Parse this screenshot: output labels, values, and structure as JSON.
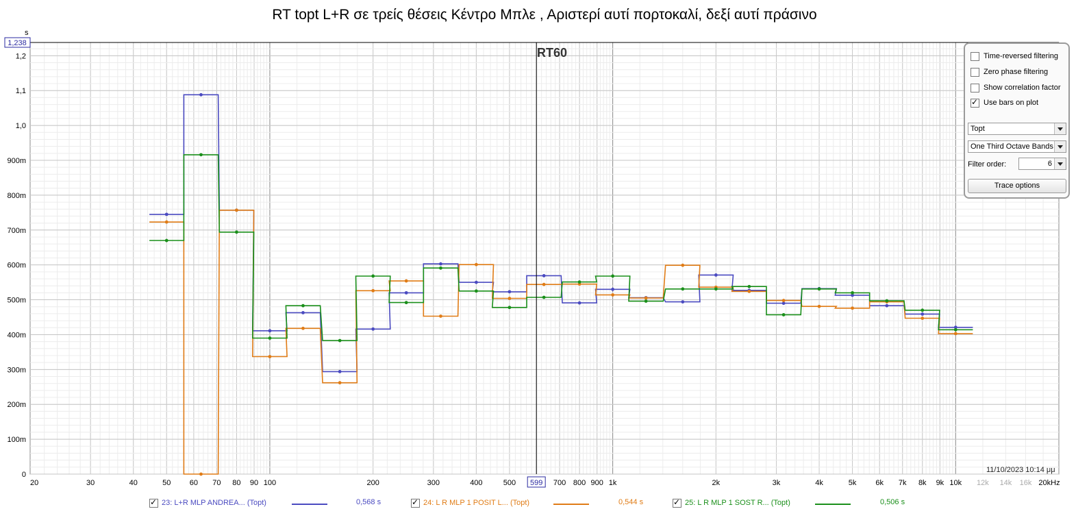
{
  "title": "RT topt L+R σε τρείς θέσεις Κέντρο Μπλε , Αριστερί αυτί πορτοκαλί, δεξί αυτί πράσινο",
  "plot_label": "RT60",
  "y_unit": "s",
  "cursor_y_label": "1,238",
  "cursor_x_label": "599",
  "timestamp": "11/10/2023 10:14 μμ",
  "panel": {
    "time_reversed": "Time-reversed filtering",
    "zero_phase": "Zero phase filtering",
    "show_correlation": "Show correlation factor",
    "use_bars": "Use bars on plot",
    "measure_select": "Topt",
    "bands_select": "One Third Octave Bands",
    "filter_order_label": "Filter order:",
    "filter_order_value": "6",
    "trace_options": "Trace options"
  },
  "legend": [
    {
      "label": "23: L+R MLP ANDREA... (Topt)",
      "value": "0,568 s",
      "color": "#4a4ac0"
    },
    {
      "label": "24: L R MLP 1 POSIT L... (Topt)",
      "value": "0,544 s",
      "color": "#e07c16"
    },
    {
      "label": "25: L R MLP 1 SOST R... (Topt)",
      "value": "0,506 s",
      "color": "#1a8f1a"
    }
  ],
  "chart_data": {
    "type": "line",
    "title": "RT60",
    "xlabel": "",
    "ylabel": "s",
    "x_scale": "log",
    "xlim": [
      20,
      20000
    ],
    "ylim": [
      0,
      1.238
    ],
    "x_ticks": [
      {
        "v": 20,
        "t": "20"
      },
      {
        "v": 30,
        "t": "30"
      },
      {
        "v": 40,
        "t": "40"
      },
      {
        "v": 50,
        "t": "50"
      },
      {
        "v": 60,
        "t": "60"
      },
      {
        "v": 70,
        "t": "70"
      },
      {
        "v": 80,
        "t": "80"
      },
      {
        "v": 90,
        "t": "90"
      },
      {
        "v": 100,
        "t": "100"
      },
      {
        "v": 200,
        "t": "200"
      },
      {
        "v": 300,
        "t": "300"
      },
      {
        "v": 400,
        "t": "400"
      },
      {
        "v": 500,
        "t": "500"
      },
      {
        "v": 700,
        "t": "700"
      },
      {
        "v": 800,
        "t": "800"
      },
      {
        "v": 900,
        "t": "900"
      },
      {
        "v": 1000,
        "t": "1k"
      },
      {
        "v": 2000,
        "t": "2k"
      },
      {
        "v": 3000,
        "t": "3k"
      },
      {
        "v": 4000,
        "t": "4k"
      },
      {
        "v": 5000,
        "t": "5k"
      },
      {
        "v": 6000,
        "t": "6k"
      },
      {
        "v": 7000,
        "t": "7k"
      },
      {
        "v": 8000,
        "t": "8k"
      },
      {
        "v": 9000,
        "t": "9k"
      },
      {
        "v": 10000,
        "t": "10k"
      },
      {
        "v": 12000,
        "t": "12k"
      },
      {
        "v": 14000,
        "t": "14k"
      },
      {
        "v": 16000,
        "t": "16k"
      },
      {
        "v": 20000,
        "t": "20kHz"
      }
    ],
    "y_ticks": [
      {
        "v": 0,
        "t": "0"
      },
      {
        "v": 0.1,
        "t": "100m"
      },
      {
        "v": 0.2,
        "t": "200m"
      },
      {
        "v": 0.3,
        "t": "300m"
      },
      {
        "v": 0.4,
        "t": "400m"
      },
      {
        "v": 0.5,
        "t": "500m"
      },
      {
        "v": 0.6,
        "t": "600m"
      },
      {
        "v": 0.7,
        "t": "700m"
      },
      {
        "v": 0.8,
        "t": "800m"
      },
      {
        "v": 0.9,
        "t": "900m"
      },
      {
        "v": 1.0,
        "t": "1,0"
      },
      {
        "v": 1.1,
        "t": "1,1"
      },
      {
        "v": 1.2,
        "t": "1,2"
      }
    ],
    "cursor_x": 599,
    "cursor_y": 1.238,
    "bands": [
      50,
      63,
      80,
      100,
      125,
      160,
      200,
      250,
      315,
      400,
      500,
      630,
      800,
      1000,
      1250,
      1600,
      2000,
      2500,
      3150,
      4000,
      5000,
      6300,
      8000,
      10000
    ],
    "series": [
      {
        "name": "23: L+R MLP ANDREA... (Topt)",
        "color": "#4a4ac0",
        "values": [
          0.745,
          1.088,
          0.757,
          0.411,
          0.463,
          0.294,
          0.416,
          0.52,
          0.603,
          0.55,
          0.523,
          0.569,
          0.491,
          0.53,
          0.506,
          0.494,
          0.571,
          0.527,
          0.49,
          0.532,
          0.513,
          0.483,
          0.459,
          0.421
        ]
      },
      {
        "name": "24: L R MLP 1 POSIT L... (Topt)",
        "color": "#e07c16",
        "values": [
          0.723,
          0.0,
          0.757,
          0.337,
          0.418,
          0.262,
          0.526,
          0.554,
          0.453,
          0.601,
          0.504,
          0.544,
          0.545,
          0.514,
          0.505,
          0.599,
          0.536,
          0.524,
          0.498,
          0.481,
          0.476,
          0.494,
          0.447,
          0.403
        ]
      },
      {
        "name": "25: L R MLP 1 SOST R... (Topt)",
        "color": "#1a8f1a",
        "values": [
          0.67,
          0.916,
          0.694,
          0.39,
          0.483,
          0.383,
          0.568,
          0.492,
          0.591,
          0.525,
          0.478,
          0.507,
          0.551,
          0.568,
          0.496,
          0.531,
          0.531,
          0.538,
          0.457,
          0.531,
          0.52,
          0.497,
          0.47,
          0.414
        ]
      }
    ]
  }
}
